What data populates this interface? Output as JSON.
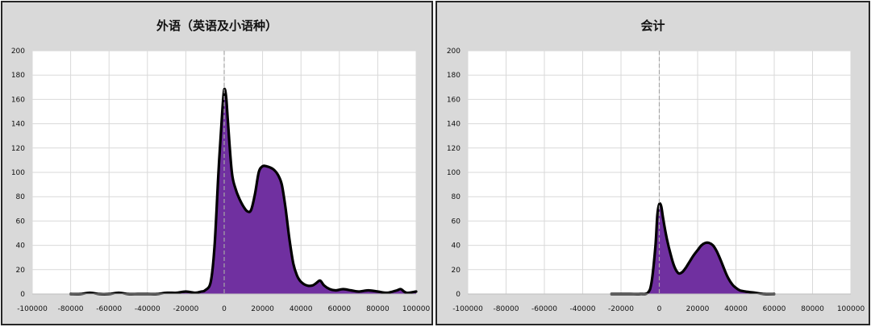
{
  "chart_data": [
    {
      "type": "area",
      "title": "外语（英语及小语种）",
      "xlim": [
        -100000,
        100000
      ],
      "ylim": [
        0,
        200
      ],
      "x_ticks": [
        -100000,
        -80000,
        -60000,
        -40000,
        -20000,
        0,
        20000,
        40000,
        60000,
        80000,
        100000
      ],
      "y_ticks": [
        0,
        20,
        40,
        60,
        80,
        100,
        120,
        140,
        160,
        180,
        200
      ],
      "grid": true,
      "reference_line_x": 0,
      "fill_color": "#7030a0",
      "line_color": "#000000",
      "series": [
        {
          "x": [
            -80000,
            -75000,
            -70000,
            -65000,
            -60000,
            -55000,
            -50000,
            -45000,
            -40000,
            -35000,
            -30000,
            -25000,
            -20000,
            -15000,
            -12000,
            -10000,
            -7000,
            -5000,
            -3000,
            -1000,
            0,
            1000,
            2000,
            4000,
            6000,
            8000,
            10000,
            12000,
            14000,
            16000,
            18000,
            20000,
            22000,
            24000,
            26000,
            28000,
            30000,
            32000,
            34000,
            36000,
            38000,
            40000,
            43000,
            46000,
            48000,
            50000,
            52000,
            55000,
            58000,
            62000,
            66000,
            70000,
            75000,
            80000,
            85000,
            90000,
            92000,
            95000,
            100000
          ],
          "y": [
            0,
            0,
            1,
            0,
            0,
            1,
            0,
            0,
            0,
            0,
            1,
            1,
            2,
            1,
            2,
            3,
            10,
            40,
            100,
            150,
            168,
            162,
            140,
            100,
            86,
            78,
            72,
            68,
            69,
            82,
            100,
            105,
            105,
            104,
            102,
            98,
            90,
            70,
            45,
            25,
            15,
            10,
            7,
            7,
            9,
            11,
            7,
            4,
            3,
            4,
            3,
            2,
            3,
            2,
            1,
            3,
            4,
            1,
            2
          ]
        }
      ]
    },
    {
      "type": "area",
      "title": "会计",
      "xlim": [
        -100000,
        100000
      ],
      "ylim": [
        0,
        200
      ],
      "x_ticks": [
        -100000,
        -80000,
        -60000,
        -40000,
        -20000,
        0,
        20000,
        40000,
        60000,
        80000,
        100000
      ],
      "y_ticks": [
        0,
        20,
        40,
        60,
        80,
        100,
        120,
        140,
        160,
        180,
        200
      ],
      "grid": true,
      "reference_line_x": 0,
      "fill_color": "#7030a0",
      "line_color": "#000000",
      "series": [
        {
          "x": [
            -25000,
            -20000,
            -15000,
            -10000,
            -6000,
            -4000,
            -2000,
            -1000,
            0,
            1000,
            2000,
            4000,
            6000,
            8000,
            10000,
            12000,
            14000,
            16000,
            18000,
            20000,
            22000,
            24000,
            26000,
            28000,
            30000,
            32000,
            34000,
            36000,
            38000,
            40000,
            42000,
            45000,
            50000,
            55000,
            60000
          ],
          "y": [
            0,
            0,
            0,
            0,
            1,
            10,
            40,
            65,
            74,
            72,
            62,
            45,
            32,
            22,
            17,
            18,
            22,
            27,
            32,
            36,
            40,
            42,
            42,
            40,
            35,
            28,
            20,
            13,
            8,
            5,
            3,
            2,
            1,
            0,
            0
          ]
        }
      ]
    }
  ]
}
